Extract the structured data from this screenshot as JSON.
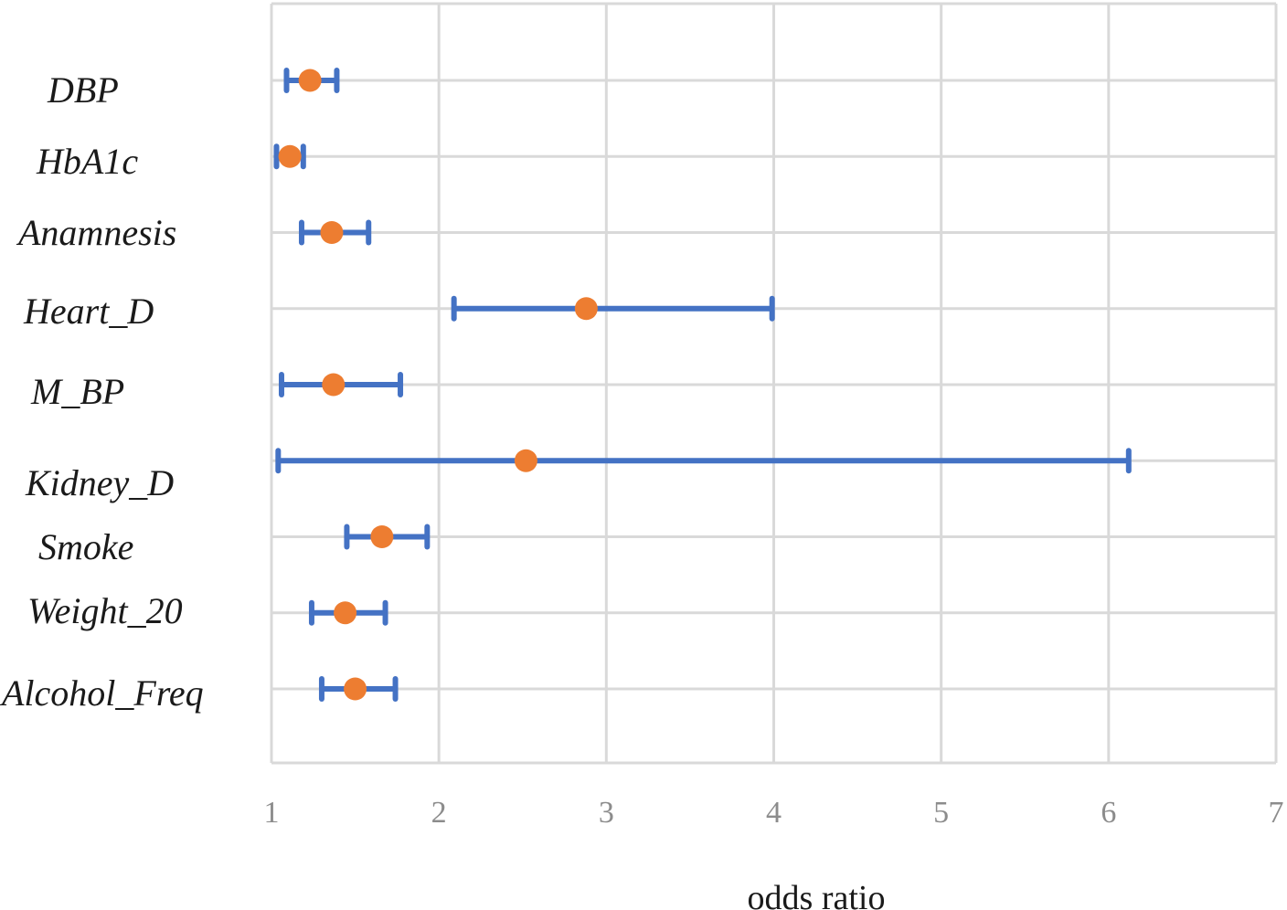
{
  "chart_data": {
    "type": "scatter",
    "subtype": "forest-plot",
    "title": "",
    "xlabel": "odds ratio",
    "ylabel": "",
    "xlim": [
      1,
      7
    ],
    "xticks": [
      "1",
      "2",
      "3",
      "4",
      "5",
      "6",
      "7"
    ],
    "grid": true,
    "legend": "none",
    "colors": {
      "point": "#ED7D31",
      "interval": "#4472C4",
      "grid": "#D9D9D9"
    },
    "rows": [
      {
        "label": "DBP",
        "or": 1.23,
        "lower": 1.09,
        "upper": 1.39
      },
      {
        "label": "HbA1c",
        "or": 1.11,
        "lower": 1.03,
        "upper": 1.19
      },
      {
        "label": "Anamnesis",
        "or": 1.36,
        "lower": 1.18,
        "upper": 1.58
      },
      {
        "label": "Heart_D",
        "or": 2.88,
        "lower": 2.09,
        "upper": 3.99
      },
      {
        "label": "M_BP",
        "or": 1.37,
        "lower": 1.06,
        "upper": 1.77
      },
      {
        "label": "Kidney_D",
        "or": 2.52,
        "lower": 1.04,
        "upper": 6.12
      },
      {
        "label": "Smoke",
        "or": 1.66,
        "lower": 1.45,
        "upper": 1.93
      },
      {
        "label": "Weight_20",
        "or": 1.44,
        "lower": 1.24,
        "upper": 1.68
      },
      {
        "label": "Alcohol_Freq",
        "or": 1.5,
        "lower": 1.3,
        "upper": 1.74
      }
    ]
  }
}
